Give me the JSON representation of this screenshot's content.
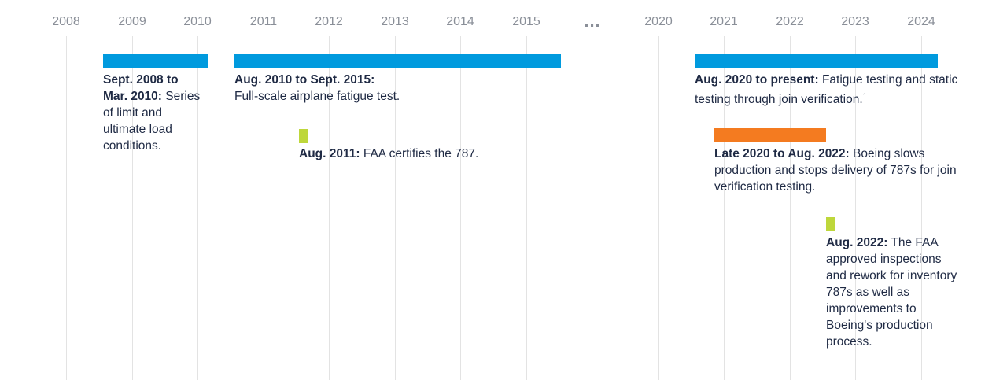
{
  "timeline": {
    "years": [
      "2008",
      "2009",
      "2010",
      "2011",
      "2012",
      "2013",
      "2014",
      "2015",
      "2020",
      "2021",
      "2022",
      "2023",
      "2024"
    ],
    "gap_marker": "...",
    "colors": {
      "test_bar": "#009ade",
      "boeing_bar": "#f47b20",
      "faa_marker": "#bed73b",
      "text": "#1f2a44",
      "axis": "#8a8f98"
    },
    "events": [
      {
        "bold": "Sept. 2008 to Mar. 2010:",
        "text": "Series of limit and ultimate load conditions."
      },
      {
        "bold": "Aug. 2010 to Sept. 2015:",
        "text": "Full-scale airplane fatigue test."
      },
      {
        "bold": "Aug. 2011:",
        "text": "FAA certifies the 787."
      },
      {
        "bold": "Aug. 2020 to present:",
        "text": "Fatigue testing and static testing through join verification.",
        "note": "1"
      },
      {
        "bold": "Late 2020 to Aug. 2022:",
        "text": "Boeing slows production and stops delivery of 787s for join verification testing."
      },
      {
        "bold": "Aug. 2022:",
        "text": "The FAA approved inspections and rework for inventory 787s as well as improvements to Boeing's production process."
      }
    ]
  }
}
